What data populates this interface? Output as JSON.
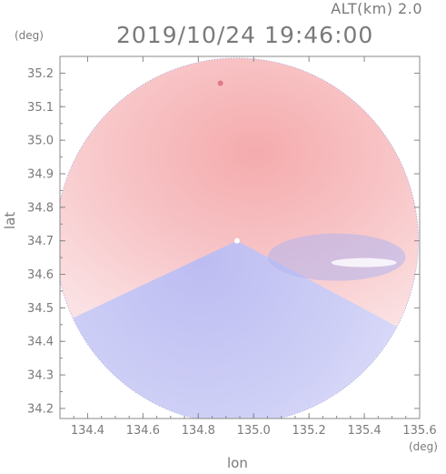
{
  "header": {
    "altitude_label": "ALT(km) 2.0",
    "datetime": "2019/10/24 19:46:00"
  },
  "axes": {
    "x_label": "lon",
    "y_label": "lat",
    "x_unit": "(deg)",
    "y_unit": "(deg)"
  },
  "map_data": {
    "type": "radar_ppi",
    "x_range": [
      134.3,
      135.6
    ],
    "y_range": [
      34.17,
      35.25
    ],
    "x_ticks": [
      "134.4",
      "134.6",
      "134.8",
      "135.0",
      "135.2",
      "135.4",
      "135.6"
    ],
    "x_tick_values": [
      134.4,
      134.6,
      134.8,
      135.0,
      135.2,
      135.4,
      135.6
    ],
    "y_ticks": [
      "35.2",
      "35.1",
      "35.0",
      "34.9",
      "34.8",
      "34.7",
      "34.6",
      "34.5",
      "34.4",
      "34.3",
      "34.2"
    ],
    "y_tick_values": [
      35.2,
      35.1,
      35.0,
      34.9,
      34.8,
      34.7,
      34.6,
      34.5,
      34.4,
      34.3,
      34.2
    ],
    "radar_center": {
      "lon": 134.94,
      "lat": 34.7
    },
    "radar_radius_lon": 0.655,
    "radar_radius_lat": 0.545,
    "colors": {
      "positive": "#f8bcbc",
      "negative": "#c8c8f4",
      "axis": "#8a8a8a"
    }
  }
}
